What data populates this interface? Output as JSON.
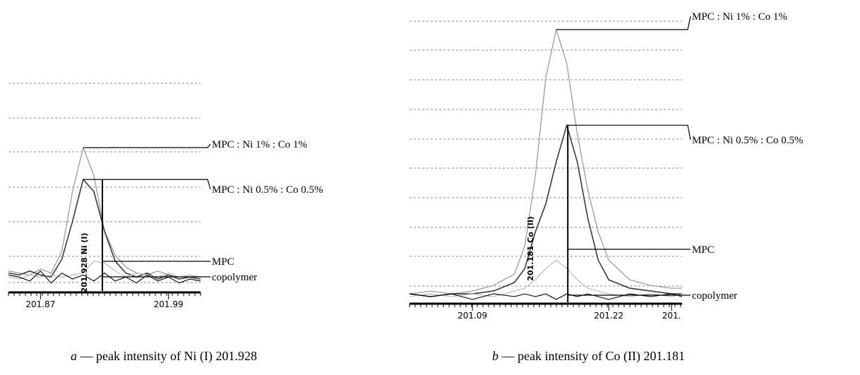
{
  "chart_data": [
    {
      "type": "line",
      "caption_letter": "a",
      "caption_text": " — peak intensity of Ni (I) 201.928",
      "vertical_label": "201.928 Ni (I)",
      "marker_x": 201.928,
      "xlim": [
        201.84,
        202.02
      ],
      "xticks": [
        {
          "value": 201.87,
          "label": "201.87"
        },
        {
          "value": 201.99,
          "label": "201.99"
        }
      ],
      "ylim": [
        0,
        100
      ],
      "grid": true,
      "series": [
        {
          "label": "MPC : Ni 1% : Co 1%",
          "color": "#9b9b9b",
          "width": 1.3,
          "x": [
            201.84,
            201.85,
            201.86,
            201.87,
            201.88,
            201.89,
            201.9,
            201.91,
            201.92,
            201.93,
            201.94,
            201.95,
            201.96,
            201.97,
            201.98,
            201.99,
            202.0,
            202.01,
            202.02
          ],
          "y": [
            10,
            9,
            8,
            11,
            9,
            20,
            50,
            72,
            58,
            30,
            18,
            12,
            9,
            8,
            10,
            8,
            7,
            8,
            7
          ]
        },
        {
          "label": "MPC : Ni 0.5% : Co 0.5%",
          "color": "#3a3a3a",
          "width": 1.6,
          "x": [
            201.84,
            201.85,
            201.86,
            201.87,
            201.88,
            201.89,
            201.9,
            201.91,
            201.92,
            201.93,
            201.94,
            201.95,
            201.96,
            201.97,
            201.98,
            201.99,
            202.0,
            202.01,
            202.02
          ],
          "y": [
            9,
            8,
            10,
            8,
            7,
            16,
            35,
            56,
            50,
            30,
            15,
            9,
            7,
            9,
            6,
            8,
            6,
            7,
            6
          ]
        },
        {
          "label": "MPC",
          "color": "#b5b5b5",
          "width": 1.1,
          "x": [
            201.84,
            201.85,
            201.86,
            201.87,
            201.88,
            201.89,
            201.9,
            201.91,
            201.92,
            201.93,
            201.94,
            201.95,
            201.96,
            201.97,
            201.98,
            201.99,
            202.0,
            202.01,
            202.02
          ],
          "y": [
            7,
            6,
            8,
            7,
            8,
            7,
            8,
            9,
            15,
            14,
            10,
            7,
            9,
            8,
            7,
            9,
            7,
            8,
            7
          ]
        },
        {
          "label": "copolymer",
          "color": "#000000",
          "width": 1.1,
          "x": [
            201.84,
            201.85,
            201.86,
            201.87,
            201.88,
            201.89,
            201.9,
            201.91,
            201.92,
            201.93,
            201.94,
            201.95,
            201.96,
            201.97,
            201.98,
            201.99,
            202.0,
            202.01,
            202.02
          ],
          "y": [
            8,
            7,
            5,
            10,
            4,
            9,
            6,
            8,
            5,
            9,
            5,
            7,
            4,
            8,
            5,
            7,
            4,
            6,
            5
          ]
        }
      ]
    },
    {
      "type": "line",
      "caption_letter": "b",
      "caption_text": " — peak intensity of Co (II) 201.181",
      "vertical_label": "201.181 Co (II)",
      "marker_x": 201.181,
      "xlim": [
        201.03,
        201.29
      ],
      "xticks": [
        {
          "value": 201.09,
          "label": "201.09"
        },
        {
          "value": 201.22,
          "label": "201.22"
        },
        {
          "value": 201.28,
          "label": "201."
        }
      ],
      "ylim": [
        0,
        100
      ],
      "grid": true,
      "series": [
        {
          "label": "MPC : Ni 1% : Co 1%",
          "color": "#9b9b9b",
          "width": 1.3,
          "x": [
            201.03,
            201.05,
            201.07,
            201.09,
            201.11,
            201.13,
            201.14,
            201.15,
            201.16,
            201.17,
            201.18,
            201.19,
            201.2,
            201.21,
            201.22,
            201.24,
            201.26,
            201.28,
            201.29
          ],
          "y": [
            3,
            4,
            3,
            4,
            6,
            10,
            20,
            45,
            80,
            97,
            85,
            60,
            40,
            25,
            15,
            8,
            6,
            5,
            5
          ]
        },
        {
          "label": "MPC : Ni 0.5% : Co 0.5%",
          "color": "#3a3a3a",
          "width": 1.6,
          "x": [
            201.03,
            201.05,
            201.07,
            201.09,
            201.11,
            201.13,
            201.14,
            201.15,
            201.16,
            201.17,
            201.18,
            201.19,
            201.2,
            201.21,
            201.22,
            201.24,
            201.26,
            201.28,
            201.29
          ],
          "y": [
            3,
            2,
            3,
            3,
            4,
            7,
            12,
            25,
            35,
            50,
            63,
            50,
            30,
            15,
            8,
            5,
            4,
            3,
            3
          ]
        },
        {
          "label": "MPC",
          "color": "#b5b5b5",
          "width": 1.1,
          "x": [
            201.03,
            201.05,
            201.07,
            201.09,
            201.11,
            201.13,
            201.14,
            201.15,
            201.16,
            201.17,
            201.18,
            201.19,
            201.2,
            201.21,
            201.22,
            201.24,
            201.26,
            201.28,
            201.29
          ],
          "y": [
            2,
            3,
            2,
            3,
            2,
            4,
            5,
            8,
            12,
            15,
            12,
            8,
            5,
            4,
            3,
            2,
            3,
            2,
            3
          ]
        },
        {
          "label": "copolymer",
          "color": "#000000",
          "width": 1.1,
          "x": [
            201.03,
            201.05,
            201.07,
            201.09,
            201.11,
            201.13,
            201.14,
            201.15,
            201.16,
            201.17,
            201.18,
            201.19,
            201.2,
            201.21,
            201.22,
            201.24,
            201.26,
            201.28,
            201.29
          ],
          "y": [
            3,
            2,
            3,
            1,
            3,
            2,
            3,
            2,
            3,
            1,
            3,
            2,
            3,
            2,
            1,
            3,
            2,
            3,
            2
          ]
        }
      ]
    }
  ]
}
